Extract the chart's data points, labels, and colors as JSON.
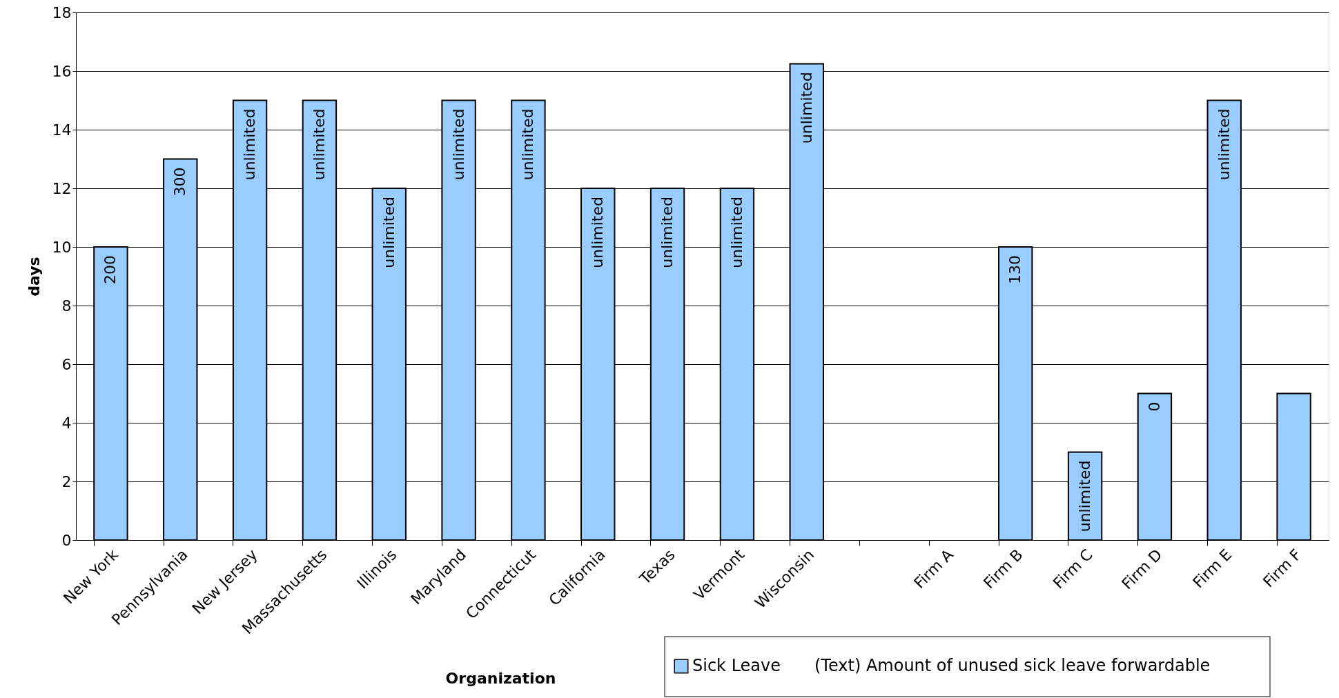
{
  "chart_data": {
    "type": "bar",
    "xlabel": "Organization",
    "ylabel": "days",
    "categories": [
      "New York",
      "Pennsylvania",
      "New Jersey",
      "Massachusetts",
      "Illinois",
      "Maryland",
      "Connecticut",
      "California",
      "Texas",
      "Vermont",
      "Wisconsin",
      null,
      "Firm A",
      "Firm B",
      "Firm C",
      "Firm D",
      "Firm E",
      "Firm F"
    ],
    "series": [
      {
        "name": "Sick Leave",
        "color": "#99ccff",
        "values": [
          10,
          13,
          15,
          15,
          12,
          15,
          15,
          12,
          12,
          12,
          16.25,
          null,
          null,
          10,
          3,
          5,
          15,
          5
        ]
      }
    ],
    "ylim": [
      0,
      18
    ],
    "yticks": [
      0,
      2,
      4,
      6,
      8,
      10,
      12,
      14,
      16,
      18
    ],
    "grid": "y",
    "legend": "bottom right",
    "annotations": [
      "(Text) Amount of unused sick leave forwardable",
      {
        "text": "200",
        "x": "New York",
        "y": 10
      },
      {
        "text": "300",
        "x": "Pennsylvania",
        "y": 13
      },
      {
        "text": "unlimited",
        "x": "New Jersey",
        "y": 15
      },
      {
        "text": "unlimited",
        "x": "Massachusetts",
        "y": 15
      },
      {
        "text": "unlimited",
        "x": "Illinois",
        "y": 12
      },
      {
        "text": "unlimited",
        "x": "Maryland",
        "y": 15
      },
      {
        "text": "unlimited",
        "x": "Connecticut",
        "y": 15
      },
      {
        "text": "unlimited",
        "x": "California",
        "y": 12
      },
      {
        "text": "unlimited",
        "x": "Texas",
        "y": 12
      },
      {
        "text": "unlimited",
        "x": "Vermont",
        "y": 12
      },
      {
        "text": "unlimited",
        "x": "Wisconsin",
        "y": 16.25
      },
      {
        "text": "130",
        "x": "Firm B",
        "y": 10
      },
      {
        "text": "unlimited",
        "x": "Firm C",
        "y": 3
      },
      {
        "text": "0",
        "x": "Firm D",
        "y": 5
      },
      {
        "text": "unlimited",
        "x": "Firm E",
        "y": 15
      }
    ]
  }
}
